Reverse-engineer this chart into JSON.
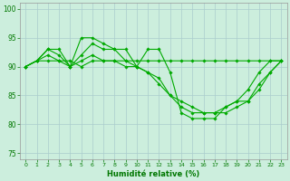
{
  "xlabel": "Humidité relative (%)",
  "background_color": "#cceedd",
  "grid_color": "#aacccc",
  "line_color": "#00aa00",
  "marker": "D",
  "markersize": 1.8,
  "linewidth": 0.8,
  "xlim": [
    -0.5,
    23.5
  ],
  "ylim": [
    74,
    101
  ],
  "yticks": [
    75,
    80,
    85,
    90,
    95,
    100
  ],
  "xticks": [
    0,
    1,
    2,
    3,
    4,
    5,
    6,
    7,
    8,
    9,
    10,
    11,
    12,
    13,
    14,
    15,
    16,
    17,
    18,
    19,
    20,
    21,
    22,
    23
  ],
  "series": [
    [
      90,
      91,
      93,
      93,
      90,
      95,
      95,
      94,
      93,
      93,
      90,
      93,
      93,
      89,
      82,
      81,
      81,
      81,
      83,
      84,
      86,
      89,
      91,
      91
    ],
    [
      90,
      91,
      91,
      91,
      91,
      90,
      91,
      91,
      91,
      91,
      91,
      91,
      91,
      91,
      91,
      91,
      91,
      91,
      91,
      91,
      91,
      91,
      91,
      91
    ],
    [
      90,
      91,
      92,
      91,
      90,
      91,
      92,
      91,
      91,
      90,
      90,
      89,
      87,
      85,
      84,
      83,
      82,
      82,
      82,
      83,
      84,
      87,
      89,
      91
    ],
    [
      90,
      91,
      93,
      92,
      90,
      92,
      94,
      93,
      93,
      91,
      90,
      89,
      88,
      85,
      83,
      82,
      82,
      82,
      83,
      84,
      84,
      86,
      89,
      91
    ]
  ]
}
